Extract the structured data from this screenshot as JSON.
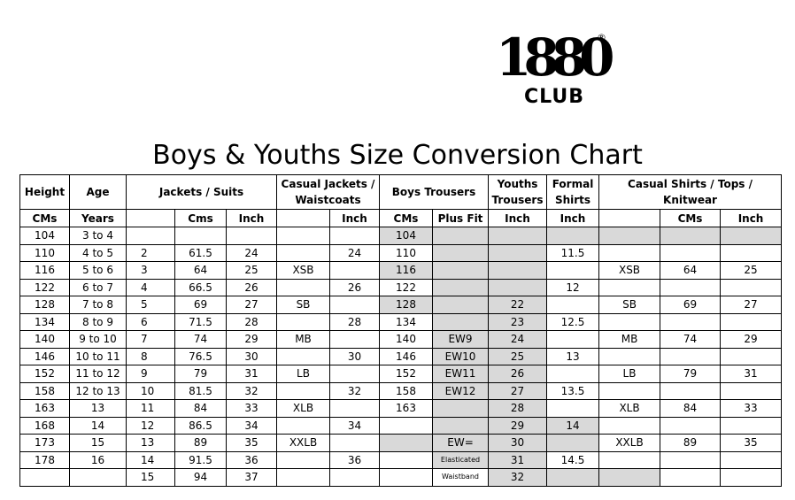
{
  "logo": {
    "number": "1880",
    "registered": "®",
    "club": "CLUB"
  },
  "title": "Boys & Youths Size Conversion Chart",
  "headers": {
    "height": "Height",
    "age": "Age",
    "jackets": "Jackets / Suits",
    "casual_jackets": "Casual Jackets / Waistcoats",
    "boys_trousers": "Boys Trousers",
    "youths_trousers": "Youths Trousers",
    "formal_shirts": "Formal Shirts",
    "casual_shirts": "Casual Shirts / Tops / Knitwear"
  },
  "subheaders": {
    "cms": "CMs",
    "years": "Years",
    "jk_cms": "Cms",
    "jk_inch": "Inch",
    "cj_inch": "Inch",
    "bt_cms": "CMs",
    "bt_plus": "Plus Fit",
    "yt_inch": "Inch",
    "fs_inch": "Inch",
    "cs_cms": "CMs",
    "cs_inch": "Inch"
  },
  "rows": [
    [
      "104",
      "3 to 4",
      "",
      "",
      "",
      "",
      "",
      "104",
      "",
      "",
      "",
      "",
      "",
      ""
    ],
    [
      "110",
      "4 to 5",
      "2",
      "61.5",
      "24",
      "",
      "24",
      "110",
      "",
      "",
      "11.5",
      "",
      "",
      ""
    ],
    [
      "116",
      "5 to 6",
      "3",
      "64",
      "25",
      "XSB",
      "",
      "116",
      "",
      "",
      "",
      "XSB",
      "64",
      "25"
    ],
    [
      "122",
      "6 to 7",
      "4",
      "66.5",
      "26",
      "",
      "26",
      "122",
      "",
      "",
      "12",
      "",
      "",
      ""
    ],
    [
      "128",
      "7 to 8",
      "5",
      "69",
      "27",
      "SB",
      "",
      "128",
      "",
      "22",
      "",
      "SB",
      "69",
      "27"
    ],
    [
      "134",
      "8 to 9",
      "6",
      "71.5",
      "28",
      "",
      "28",
      "134",
      "",
      "23",
      "12.5",
      "",
      "",
      ""
    ],
    [
      "140",
      "9 to 10",
      "7",
      "74",
      "29",
      "MB",
      "",
      "140",
      "EW9",
      "24",
      "",
      "MB",
      "74",
      "29"
    ],
    [
      "146",
      "10 to 11",
      "8",
      "76.5",
      "30",
      "",
      "30",
      "146",
      "EW10",
      "25",
      "13",
      "",
      "",
      ""
    ],
    [
      "152",
      "11 to 12",
      "9",
      "79",
      "31",
      "LB",
      "",
      "152",
      "EW11",
      "26",
      "",
      "LB",
      "79",
      "31"
    ],
    [
      "158",
      "12 to 13",
      "10",
      "81.5",
      "32",
      "",
      "32",
      "158",
      "EW12",
      "27",
      "13.5",
      "",
      "",
      ""
    ],
    [
      "163",
      "13",
      "11",
      "84",
      "33",
      "XLB",
      "",
      "163",
      "",
      "28",
      "",
      "XLB",
      "84",
      "33"
    ],
    [
      "168",
      "14",
      "12",
      "86.5",
      "34",
      "",
      "34",
      "",
      "",
      "29",
      "14",
      "",
      "",
      ""
    ],
    [
      "173",
      "15",
      "13",
      "89",
      "35",
      "XXLB",
      "",
      "",
      "EW=",
      "30",
      "",
      "XXLB",
      "89",
      "35"
    ],
    [
      "178",
      "16",
      "14",
      "91.5",
      "36",
      "",
      "36",
      "",
      "Elasticated",
      "31",
      "14.5",
      "",
      "",
      ""
    ],
    [
      "",
      "",
      "15",
      "94",
      "37",
      "",
      "",
      "",
      "Waistband",
      "32",
      "",
      "",
      "",
      ""
    ]
  ],
  "grey": [
    "00000001111111",
    "00000000110000",
    "00000001110000",
    "00000000110000",
    "00000001110000",
    "00000000110000",
    "00000000110000",
    "00000000110000",
    "00000000110000",
    "00000000110000",
    "00000000110000",
    "00000000111000",
    "00000001111000",
    "00000000110000",
    "00000000011100"
  ]
}
